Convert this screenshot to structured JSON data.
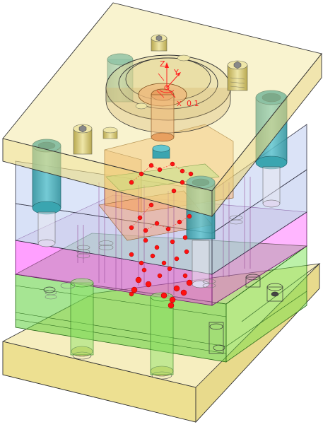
{
  "viewport": {
    "subject": "mold-base-assembly",
    "render_mode": "transparent-shaded-with-edges"
  },
  "triad": {
    "z_label": "Z",
    "y_label": "Y",
    "x_label": "X",
    "wcs_label": "0.1"
  },
  "colors": {
    "clamp_plate": "#f0e68c",
    "a_plate": "#b0c4de",
    "b_plate": "#b0c4de",
    "spacer_plate": "#ff00ff",
    "ejector_block": "#32cd32",
    "guide_bushing": "#3cb0b8",
    "locating_ring": "#4fa0a8",
    "core_insert": "#f0b070",
    "cooling_point": "#ff0000",
    "screw": "#d8c878",
    "edge": "#222222"
  }
}
